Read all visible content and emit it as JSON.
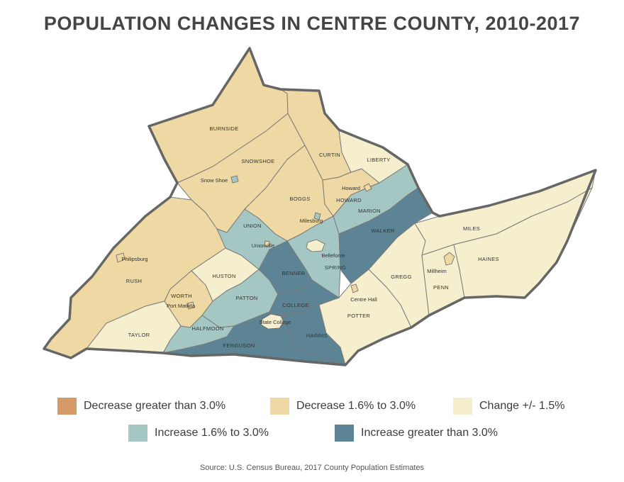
{
  "title": "POPULATION CHANGES IN CENTRE COUNTY, 2010-2017",
  "colors": {
    "decrease_gt3": "#D49A67",
    "decrease_16_30": "#EED8A3",
    "change_15": "#F6EFCD",
    "increase_16_30": "#A5C7C3",
    "increase_gt3": "#5C8494",
    "border": "#6a6a6a"
  },
  "townships": {
    "burnside": "BURNSIDE",
    "snowshoe": "SNOWSHOE",
    "curtin": "CURTIN",
    "liberty": "LIBERTY",
    "boggs": "BOGGS",
    "howard": "HOWARD",
    "marion": "MARION",
    "union": "UNION",
    "walker": "WALKER",
    "miles": "MILES",
    "haines": "HAINES",
    "rush": "RUSH",
    "huston": "HUSTON",
    "benner": "BENNER",
    "spring": "SPRING",
    "gregg": "GREGG",
    "penn": "PENN",
    "worth": "WORTH",
    "patton": "PATTON",
    "college": "COLLEGE",
    "potter": "POTTER",
    "taylor": "TAYLOR",
    "halfmoon": "HALFMOON",
    "harris": "HARRIS",
    "ferguson": "FERGUSON"
  },
  "boroughs": {
    "snow_shoe": "Snow Shoe",
    "howard": "Howard",
    "milesburg": "Milesburg",
    "unionville": "Unionville",
    "bellefonte": "Bellefonte",
    "philipsburg": "Philipsburg",
    "millheim": "Millheim",
    "port_matilda": "Port Matilda",
    "centre_hall": "Centre Hall",
    "state_college": "State College"
  },
  "legend": [
    {
      "label": "Decrease greater than 3.0%",
      "color": "#D49A67"
    },
    {
      "label": "Decrease 1.6% to 3.0%",
      "color": "#EED8A3"
    },
    {
      "label": "Change +/- 1.5%",
      "color": "#F6EFCD"
    },
    {
      "label": "Increase 1.6% to 3.0%",
      "color": "#A5C7C3"
    },
    {
      "label": "Increase greater than 3.0%",
      "color": "#5C8494"
    }
  ],
  "source": "Source: U.S. Census Bureau, 2017 County Population Estimates"
}
